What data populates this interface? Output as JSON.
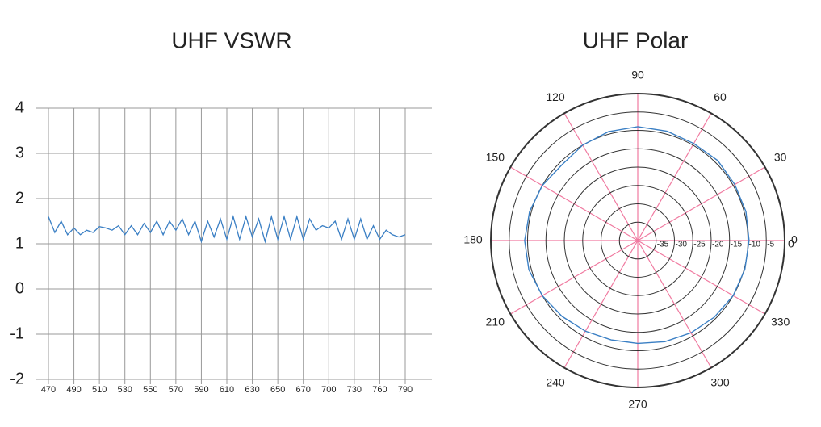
{
  "chart_data": [
    {
      "type": "line",
      "title": "UHF VSWR",
      "categories": [
        "470",
        null,
        null,
        null,
        "490",
        null,
        null,
        null,
        "510",
        null,
        null,
        null,
        "530",
        null,
        null,
        null,
        "550",
        null,
        null,
        null,
        "570",
        null,
        null,
        null,
        "590",
        null,
        null,
        null,
        "610",
        null,
        null,
        null,
        "630",
        null,
        null,
        null,
        "650",
        null,
        null,
        null,
        "670",
        null,
        null,
        null,
        "700",
        null,
        null,
        null,
        "730",
        null,
        null,
        null,
        "760",
        null,
        null,
        null,
        "790"
      ],
      "values": [
        1.6,
        1.25,
        1.5,
        1.2,
        1.35,
        1.2,
        1.3,
        1.25,
        1.38,
        1.35,
        1.3,
        1.4,
        1.2,
        1.4,
        1.2,
        1.45,
        1.25,
        1.5,
        1.2,
        1.5,
        1.3,
        1.55,
        1.2,
        1.5,
        1.05,
        1.5,
        1.15,
        1.55,
        1.1,
        1.6,
        1.1,
        1.6,
        1.15,
        1.55,
        1.05,
        1.6,
        1.1,
        1.6,
        1.1,
        1.6,
        1.1,
        1.55,
        1.3,
        1.4,
        1.35,
        1.5,
        1.1,
        1.55,
        1.1,
        1.55,
        1.1,
        1.4,
        1.1,
        1.3,
        1.2,
        1.15,
        1.2
      ],
      "color": "#3a7fc4",
      "ylim": [
        -2,
        4
      ],
      "yticks": [
        -2,
        -1,
        0,
        1,
        2,
        3,
        4
      ],
      "grid": true
    },
    {
      "type": "polar",
      "title": "UHF Polar",
      "theta": [
        0,
        15,
        30,
        45,
        60,
        75,
        90,
        105,
        120,
        135,
        150,
        165,
        180,
        195,
        210,
        225,
        240,
        255,
        270,
        285,
        300,
        315,
        330,
        345
      ],
      "values": [
        -9.7,
        -9.5,
        -9.5,
        -9.2,
        -9.5,
        -9.2,
        -9,
        -9.3,
        -10,
        -10.8,
        -10,
        -9.5,
        -9.2,
        -9.3,
        -10,
        -10.8,
        -11.5,
        -12,
        -12,
        -11.5,
        -11,
        -10.5,
        -10,
        -9.8
      ],
      "color": "#3a7fc4",
      "rlim": [
        -40,
        0
      ],
      "rticks": [
        -35,
        -30,
        -25,
        -20,
        -15,
        -10,
        -5,
        0
      ],
      "thetaticks": [
        0,
        30,
        60,
        90,
        120,
        150,
        180,
        210,
        240,
        270,
        300,
        330
      ],
      "grid": true
    }
  ]
}
